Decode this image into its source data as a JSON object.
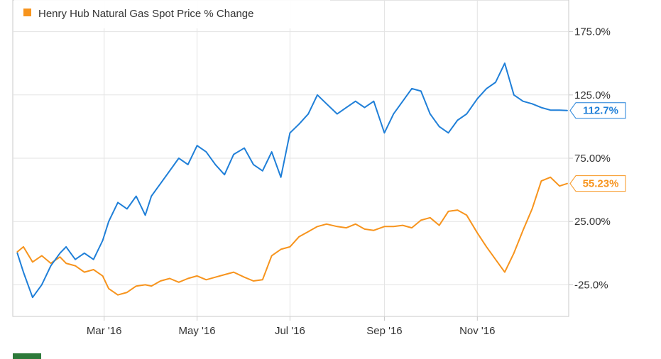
{
  "chart_data": {
    "type": "line",
    "title": "",
    "xlabel": "",
    "ylabel": "",
    "ylim": [
      -50,
      200
    ],
    "x_ticks": [
      "Mar '16",
      "May '16",
      "Jul '16",
      "Sep '16",
      "Nov '16"
    ],
    "y_ticks": [
      "175.0%",
      "125.0%",
      "75.00%",
      "25.00%",
      "-25.0%"
    ],
    "grid": true,
    "legend_position": "top-left",
    "series": [
      {
        "name": "Henry Hub Natural Gas Spot Price % Change",
        "color": "#f7941d",
        "end_label": "55.23%",
        "x": [
          "2016-01-04",
          "2016-01-08",
          "2016-01-14",
          "2016-01-20",
          "2016-01-26",
          "2016-02-01",
          "2016-02-05",
          "2016-02-11",
          "2016-02-17",
          "2016-02-23",
          "2016-02-29",
          "2016-03-04",
          "2016-03-10",
          "2016-03-16",
          "2016-03-22",
          "2016-03-28",
          "2016-04-01",
          "2016-04-07",
          "2016-04-13",
          "2016-04-19",
          "2016-04-25",
          "2016-05-01",
          "2016-05-07",
          "2016-05-13",
          "2016-05-19",
          "2016-05-25",
          "2016-06-01",
          "2016-06-07",
          "2016-06-13",
          "2016-06-19",
          "2016-06-25",
          "2016-07-01",
          "2016-07-07",
          "2016-07-13",
          "2016-07-19",
          "2016-07-25",
          "2016-08-01",
          "2016-08-07",
          "2016-08-13",
          "2016-08-19",
          "2016-08-25",
          "2016-09-01",
          "2016-09-07",
          "2016-09-13",
          "2016-09-19",
          "2016-09-25",
          "2016-10-01",
          "2016-10-07",
          "2016-10-13",
          "2016-10-19",
          "2016-10-25",
          "2016-11-01",
          "2016-11-07",
          "2016-11-13",
          "2016-11-19",
          "2016-11-25",
          "2016-12-01",
          "2016-12-07",
          "2016-12-13",
          "2016-12-19",
          "2016-12-25",
          "2016-12-30"
        ],
        "values": [
          1,
          5,
          -7,
          -2,
          -8,
          -3,
          -8,
          -10,
          -15,
          -13,
          -18,
          -28,
          -33,
          -31,
          -26,
          -25,
          -26,
          -22,
          -20,
          -23,
          -20,
          -18,
          -21,
          -19,
          -17,
          -15,
          -19,
          -22,
          -21,
          -2,
          3,
          5,
          13,
          17,
          21,
          23,
          21,
          20,
          23,
          19,
          18,
          21,
          21,
          22,
          20,
          26,
          28,
          22,
          33,
          34,
          30,
          16,
          5,
          -5,
          -15,
          0,
          18,
          35,
          57,
          60,
          53,
          55
        ]
      },
      {
        "name": "",
        "color": "#1f7fd8",
        "end_label": "112.7%",
        "x": [
          "2016-01-04",
          "2016-01-08",
          "2016-01-14",
          "2016-01-20",
          "2016-01-26",
          "2016-02-01",
          "2016-02-05",
          "2016-02-11",
          "2016-02-17",
          "2016-02-23",
          "2016-02-29",
          "2016-03-04",
          "2016-03-10",
          "2016-03-16",
          "2016-03-22",
          "2016-03-28",
          "2016-04-01",
          "2016-04-07",
          "2016-04-13",
          "2016-04-19",
          "2016-04-25",
          "2016-05-01",
          "2016-05-07",
          "2016-05-13",
          "2016-05-19",
          "2016-05-25",
          "2016-06-01",
          "2016-06-07",
          "2016-06-13",
          "2016-06-19",
          "2016-06-25",
          "2016-07-01",
          "2016-07-07",
          "2016-07-13",
          "2016-07-19",
          "2016-07-25",
          "2016-08-01",
          "2016-08-07",
          "2016-08-13",
          "2016-08-19",
          "2016-08-25",
          "2016-09-01",
          "2016-09-07",
          "2016-09-13",
          "2016-09-19",
          "2016-09-25",
          "2016-10-01",
          "2016-10-07",
          "2016-10-13",
          "2016-10-19",
          "2016-10-25",
          "2016-11-01",
          "2016-11-07",
          "2016-11-13",
          "2016-11-19",
          "2016-11-25",
          "2016-12-01",
          "2016-12-07",
          "2016-12-13",
          "2016-12-19",
          "2016-12-25",
          "2016-12-30"
        ],
        "values": [
          0,
          -15,
          -35,
          -25,
          -10,
          0,
          5,
          -5,
          0,
          -5,
          10,
          25,
          40,
          35,
          45,
          30,
          45,
          55,
          65,
          75,
          70,
          85,
          80,
          70,
          62,
          78,
          83,
          70,
          65,
          80,
          60,
          95,
          102,
          110,
          125,
          118,
          110,
          115,
          120,
          115,
          120,
          95,
          110,
          120,
          130,
          128,
          110,
          100,
          95,
          105,
          110,
          122,
          130,
          135,
          150,
          125,
          120,
          118,
          115,
          113,
          113,
          112.7
        ]
      }
    ]
  }
}
